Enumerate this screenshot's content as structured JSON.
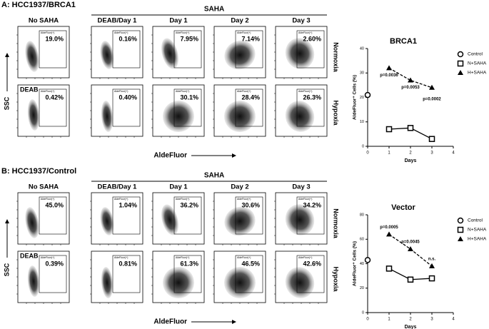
{
  "panels": [
    {
      "title": "A: HCC1937/BRCA1",
      "group_label": "SAHA",
      "column_labels": [
        "No SAHA",
        "DEAB/Day 1",
        "Day 1",
        "Day 2",
        "Day 3"
      ],
      "row_labels": [
        "Normoxia",
        "Hypoxia"
      ],
      "inset_label": "DEAB",
      "y_axis_label": "SSC",
      "x_axis_label": "AldeFluor",
      "gate_label": "AldeFluor(+)",
      "percentages": [
        [
          "19.0%",
          "0.16%",
          "7.95%",
          "7.14%",
          "2.60%"
        ],
        [
          "0.42%",
          "0.40%",
          "30.1%",
          "28.4%",
          "26.3%"
        ]
      ]
    },
    {
      "title": "B: HCC1937/Control",
      "group_label": "SAHA",
      "column_labels": [
        "No SAHA",
        "DEAB/Day 1",
        "Day 1",
        "Day 2",
        "Day 3"
      ],
      "row_labels": [
        "Normoxia",
        "Hypoxia"
      ],
      "inset_label": "DEAB",
      "y_axis_label": "SSC",
      "x_axis_label": "AldeFluor",
      "gate_label": "AldeFluor(+)",
      "percentages": [
        [
          "45.0%",
          "1.04%",
          "36.2%",
          "30.6%",
          "34.2%"
        ],
        [
          "0.39%",
          "0.81%",
          "61.3%",
          "46.5%",
          "42.6%"
        ]
      ]
    }
  ],
  "chart_data": [
    {
      "type": "line",
      "title": "BRCA1",
      "xlabel": "Days",
      "ylabel": "AldeFluor⁺ Cells (%)",
      "xlim": [
        0,
        4
      ],
      "xticks": [
        0,
        1,
        2,
        3,
        4
      ],
      "ylim": [
        0,
        40
      ],
      "yticks": [
        0,
        10,
        20,
        30,
        40
      ],
      "series": [
        {
          "name": "Control",
          "marker": "circle",
          "color": "#000000",
          "x": [
            0
          ],
          "values": [
            21
          ]
        },
        {
          "name": "N+SAHA",
          "marker": "square",
          "color": "#000000",
          "x": [
            1,
            2,
            3
          ],
          "values": [
            7,
            7.5,
            3
          ]
        },
        {
          "name": "H+SAHA",
          "marker": "triangle",
          "dashed": true,
          "color": "#000000",
          "x": [
            1,
            2,
            3
          ],
          "values": [
            32,
            27,
            24
          ]
        }
      ],
      "annotations": [
        "p=0.0036",
        "p=0.0053",
        "p=0.0002"
      ]
    },
    {
      "type": "line",
      "title": "Vector",
      "xlabel": "Days",
      "ylabel": "AldeFluor⁺ Cells (%)",
      "xlim": [
        0,
        4
      ],
      "xticks": [
        0,
        1,
        2,
        3,
        4
      ],
      "ylim": [
        0,
        80
      ],
      "yticks": [
        0,
        20,
        40,
        60,
        80
      ],
      "series": [
        {
          "name": "Control",
          "marker": "circle",
          "color": "#000000",
          "x": [
            0
          ],
          "values": [
            43
          ]
        },
        {
          "name": "N+SAHA",
          "marker": "square",
          "color": "#000000",
          "x": [
            1,
            2,
            3
          ],
          "values": [
            36,
            27,
            28
          ]
        },
        {
          "name": "H+SAHA",
          "marker": "triangle",
          "dashed": true,
          "color": "#000000",
          "x": [
            1,
            2,
            3
          ],
          "values": [
            64,
            52,
            38
          ]
        }
      ],
      "annotations": [
        "p=0.0005",
        "p=0.0045",
        "n.s."
      ]
    }
  ]
}
